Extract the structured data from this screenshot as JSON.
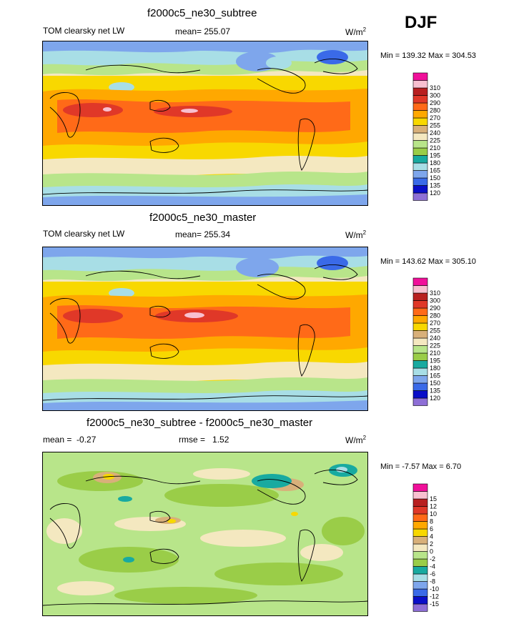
{
  "season": "DJF",
  "palette_main": [
    "#8e6fd6",
    "#0a0ec8",
    "#3a6ae8",
    "#7ea6ec",
    "#a8dee6",
    "#18aaa0",
    "#9acd48",
    "#b8e58a",
    "#f4e8c0",
    "#d8b07a",
    "#f8d800",
    "#ffa800",
    "#ff6a18",
    "#e03828",
    "#b82020",
    "#f8c0d0",
    "#f0109a"
  ],
  "palette_diff": [
    "#8e6fd6",
    "#0a0ec8",
    "#3a6ae8",
    "#7ea6ec",
    "#a8dee6",
    "#18aaa0",
    "#9acd48",
    "#b8e58a",
    "#f4e8c0",
    "#d8b07a",
    "#f8d800",
    "#ffa800",
    "#ff6a18",
    "#e03828",
    "#b82020",
    "#f8c0d0",
    "#f0109a"
  ],
  "panels": [
    {
      "title": "f2000c5_ne30_subtree",
      "variable": "TOM clearsky net LW",
      "mean_label": "mean=",
      "mean": "255.07",
      "rmse_label": "",
      "rmse": "",
      "units": "W/m",
      "units_exp": "2",
      "minmax": "Min = 139.32 Max = 304.53"
    },
    {
      "title": "f2000c5_ne30_master",
      "variable": "TOM clearsky net LW",
      "mean_label": "mean=",
      "mean": "255.34",
      "rmse_label": "",
      "rmse": "",
      "units": "W/m",
      "units_exp": "2",
      "minmax": "Min = 143.62 Max = 305.10"
    },
    {
      "title": "f2000c5_ne30_subtree - f2000c5_ne30_master",
      "variable": "",
      "mean_label": "mean =",
      "mean": "-0.27",
      "rmse_label": "rmse =",
      "rmse": "1.52",
      "units": "W/m",
      "units_exp": "2",
      "minmax": "Min =  -7.57 Max =   6.70"
    }
  ],
  "chart_data": [
    {
      "type": "heatmap",
      "title": "f2000c5_ne30_subtree",
      "levels": [
        120,
        135,
        150,
        165,
        180,
        195,
        210,
        225,
        240,
        255,
        270,
        280,
        290,
        300,
        310
      ],
      "min": 139.32,
      "max": 304.53,
      "mean": 255.07
    },
    {
      "type": "heatmap",
      "title": "f2000c5_ne30_master",
      "levels": [
        120,
        135,
        150,
        165,
        180,
        195,
        210,
        225,
        240,
        255,
        270,
        280,
        290,
        300,
        310
      ],
      "min": 143.62,
      "max": 305.1,
      "mean": 255.34
    },
    {
      "type": "heatmap",
      "title": "f2000c5_ne30_subtree - f2000c5_ne30_master",
      "levels": [
        -15,
        -12,
        -10,
        -8,
        -6,
        -4,
        -2,
        0,
        2,
        4,
        6,
        8,
        10,
        12,
        15
      ],
      "min": -7.57,
      "max": 6.7,
      "mean": -0.27,
      "rmse": 1.52
    }
  ]
}
